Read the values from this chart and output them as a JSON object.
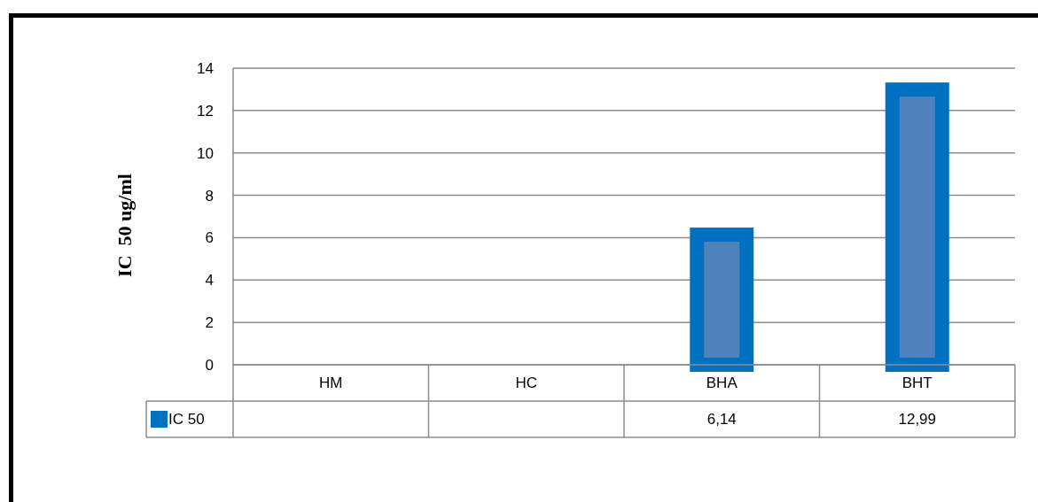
{
  "chart_data": {
    "type": "bar",
    "ylabel": "IC  50 ug/ml",
    "categories": [
      "HM",
      "HC",
      "BHA",
      "BHT"
    ],
    "series": [
      {
        "name": "IC 50",
        "color": "#0070c0",
        "values": [
          null,
          null,
          6.14,
          12.99
        ],
        "value_labels": [
          null,
          null,
          "6,14",
          "12,99"
        ]
      }
    ],
    "ylim": [
      0,
      14
    ],
    "yticks": [
      0,
      2,
      4,
      6,
      8,
      10,
      12,
      14
    ],
    "grid": "y",
    "legend": "bottom left"
  }
}
